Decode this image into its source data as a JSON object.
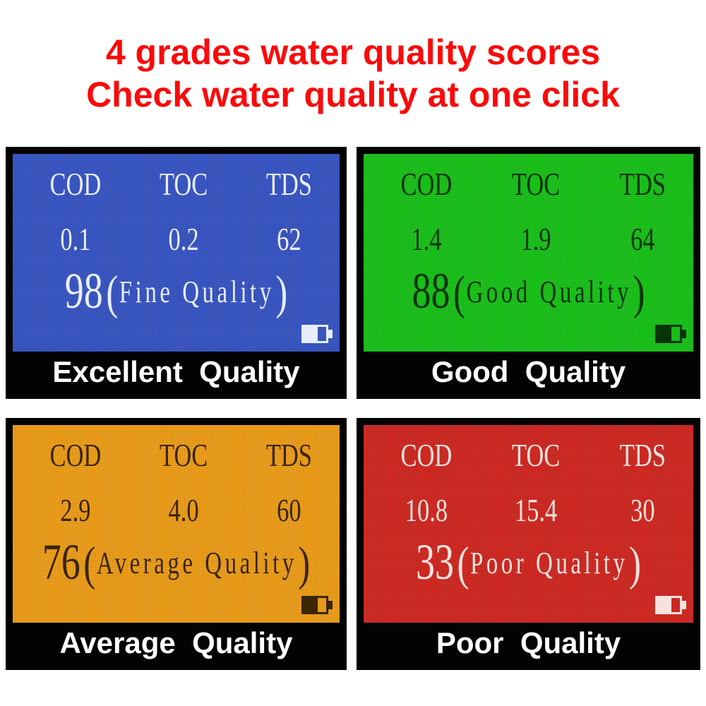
{
  "heading": {
    "line1": "4 grades water quality scores",
    "line2": "Check water quality at one click",
    "color": "#fa0a0a"
  },
  "panels": [
    {
      "name": "excellent",
      "caption": "Excellent  Quality",
      "columns": [
        "COD",
        "TOC",
        "TDS"
      ],
      "values": [
        "0.1",
        "0.2",
        "62"
      ],
      "score": "98",
      "paren_open": "(",
      "score_label": "Fine Quality",
      "paren_close": ")",
      "battery_icon": "battery-icon",
      "colors": {
        "screen": "#3b58c6",
        "text": "#e8edfb"
      }
    },
    {
      "name": "good",
      "caption": "Good  Quality",
      "columns": [
        "COD",
        "TOC",
        "TDS"
      ],
      "values": [
        "1.4",
        "1.9",
        "64"
      ],
      "score": "88",
      "paren_open": "(",
      "score_label": "Good Quality",
      "paren_close": ")",
      "battery_icon": "battery-icon",
      "colors": {
        "screen": "#1cc41c",
        "text": "#093409"
      }
    },
    {
      "name": "average",
      "caption": "Average  Quality",
      "columns": [
        "COD",
        "TOC",
        "TDS"
      ],
      "values": [
        "2.9",
        "4.0",
        "60"
      ],
      "score": "76",
      "paren_open": "(",
      "score_label": "Average Quality",
      "paren_close": ")",
      "battery_icon": "battery-icon",
      "colors": {
        "screen": "#efa01c",
        "text": "#3a2505"
      }
    },
    {
      "name": "poor",
      "caption": "Poor  Quality",
      "columns": [
        "COD",
        "TOC",
        "TDS"
      ],
      "values": [
        "10.8",
        "15.4",
        "30"
      ],
      "score": "33",
      "paren_open": "(",
      "score_label": "Poor Quality",
      "paren_close": ")",
      "battery_icon": "battery-icon",
      "colors": {
        "screen": "#d32b25",
        "text": "#f8e2dd"
      }
    }
  ]
}
